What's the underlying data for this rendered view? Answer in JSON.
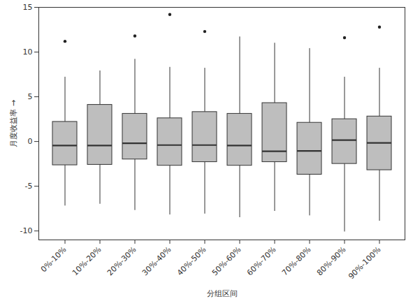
{
  "chart_data": {
    "type": "box",
    "x_label": "分组区间",
    "y_label": "月度收益率",
    "categories": [
      "0%-10%",
      "10%-20%",
      "20%-30%",
      "30%-40%",
      "40%-50%",
      "50%-60%",
      "60%-70%",
      "70%-80%",
      "80%-90%",
      "90%-100%"
    ],
    "min": [
      -7.2,
      -7.0,
      -7.7,
      -8.2,
      -8.1,
      -8.5,
      -7.8,
      -8.3,
      -10.1,
      -8.9
    ],
    "q1": [
      -2.65,
      -2.6,
      -2.0,
      -2.7,
      -2.3,
      -2.7,
      -2.3,
      -3.7,
      -2.5,
      -3.2
    ],
    "median": [
      -0.45,
      -0.45,
      -0.2,
      -0.4,
      -0.4,
      -0.45,
      -1.1,
      -1.05,
      0.15,
      -0.15
    ],
    "q3": [
      2.2,
      4.1,
      3.1,
      2.6,
      3.3,
      3.1,
      4.3,
      2.1,
      2.5,
      2.8
    ],
    "max": [
      7.2,
      7.9,
      9.2,
      8.3,
      8.2,
      11.7,
      11.0,
      10.4,
      7.2,
      8.2
    ],
    "outliers": [
      [
        11.2
      ],
      [],
      [
        11.8
      ],
      [
        14.2
      ],
      [
        12.3
      ],
      [],
      [],
      [],
      [
        11.6
      ],
      [
        12.8
      ]
    ],
    "color": "#bebebe",
    "ylim": [
      -11,
      15
    ],
    "yticks": [
      -10,
      -5,
      0,
      5,
      10,
      15
    ],
    "grid": false
  }
}
